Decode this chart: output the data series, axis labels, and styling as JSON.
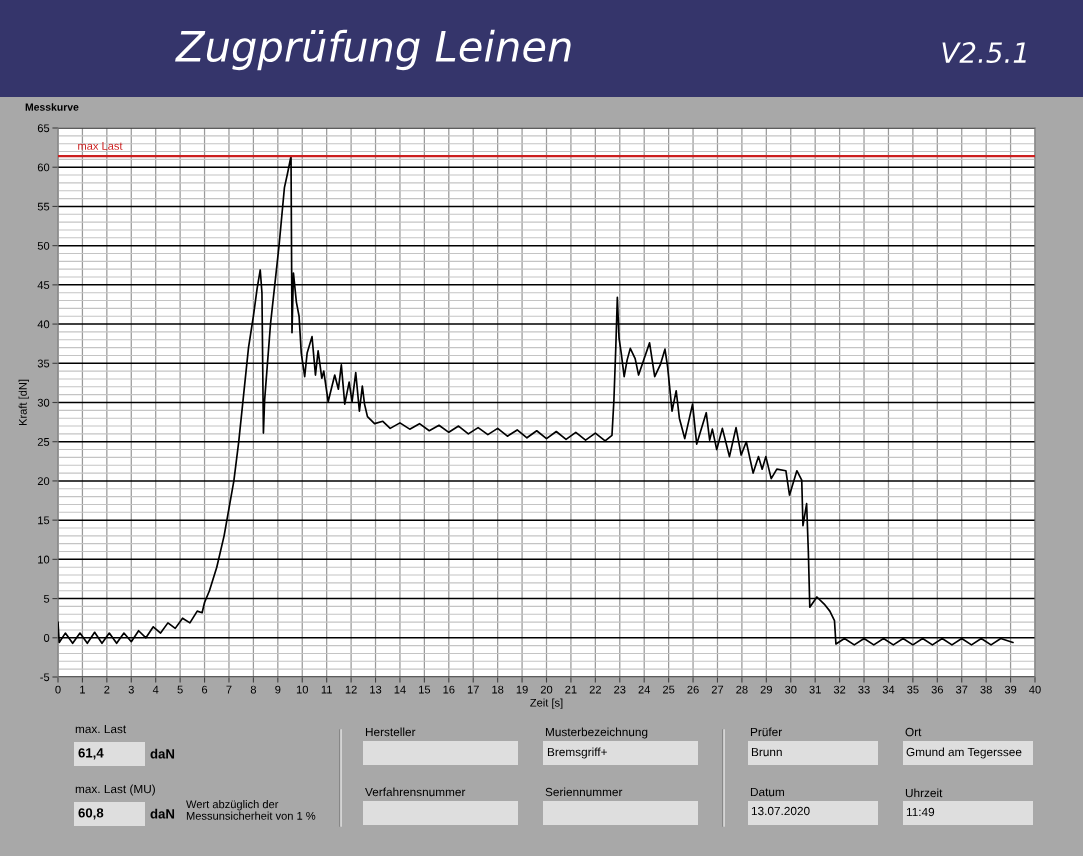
{
  "chart_data": {
    "type": "line",
    "title": "Zugprüfung Leinen",
    "xlabel": "Zeit [s]",
    "ylabel": "Kraft [dN]",
    "xlim": [
      0,
      40
    ],
    "ylim": [
      -5,
      65
    ],
    "xticks": [
      0,
      1,
      2,
      3,
      4,
      5,
      6,
      7,
      8,
      9,
      10,
      11,
      12,
      13,
      14,
      15,
      16,
      17,
      18,
      19,
      20,
      21,
      22,
      23,
      24,
      25,
      26,
      27,
      28,
      29,
      30,
      31,
      32,
      33,
      34,
      35,
      36,
      37,
      38,
      39,
      40
    ],
    "yticks": [
      -5,
      {
        "value": -4,
        "label": null
      },
      {
        "value": -3,
        "label": null
      },
      {
        "value": -2,
        "label": null
      },
      {
        "value": -1,
        "label": null
      },
      0,
      {
        "value": 1,
        "label": null
      },
      {
        "value": 2,
        "label": null
      },
      {
        "value": 3,
        "label": null
      },
      {
        "value": 4,
        "label": null
      },
      5,
      {
        "value": 6,
        "label": null
      },
      {
        "value": 7,
        "label": null
      },
      {
        "value": 8,
        "label": null
      },
      {
        "value": 9,
        "label": null
      },
      10,
      {
        "value": 11,
        "label": null
      },
      {
        "value": 12,
        "label": null
      },
      {
        "value": 13,
        "label": null
      },
      {
        "value": 14,
        "label": null
      },
      15,
      {
        "value": 16,
        "label": null
      },
      {
        "value": 17,
        "label": null
      },
      {
        "value": 18,
        "label": null
      },
      {
        "value": 19,
        "label": null
      },
      20,
      {
        "value": 21,
        "label": null
      },
      {
        "value": 22,
        "label": null
      },
      {
        "value": 23,
        "label": null
      },
      {
        "value": 24,
        "label": null
      },
      25,
      {
        "value": 26,
        "label": null
      },
      {
        "value": 27,
        "label": null
      },
      {
        "value": 28,
        "label": null
      },
      {
        "value": 29,
        "label": null
      },
      30,
      {
        "value": 31,
        "label": null
      },
      {
        "value": 32,
        "label": null
      },
      {
        "value": 33,
        "label": null
      },
      {
        "value": 34,
        "label": null
      },
      35,
      {
        "value": 36,
        "label": null
      },
      {
        "value": 37,
        "label": null
      },
      {
        "value": 38,
        "label": null
      },
      {
        "value": 39,
        "label": null
      },
      40,
      {
        "value": 41,
        "label": null
      },
      {
        "value": 42,
        "label": null
      },
      {
        "value": 43,
        "label": null
      },
      {
        "value": 44,
        "label": null
      },
      45,
      {
        "value": 46,
        "label": null
      },
      {
        "value": 47,
        "label": null
      },
      {
        "value": 48,
        "label": null
      },
      {
        "value": 49,
        "label": null
      },
      50,
      {
        "value": 51,
        "label": null
      },
      {
        "value": 52,
        "label": null
      },
      {
        "value": 53,
        "label": null
      },
      {
        "value": 54,
        "label": null
      },
      55,
      {
        "value": 56,
        "label": null
      },
      {
        "value": 57,
        "label": null
      },
      {
        "value": 58,
        "label": null
      },
      {
        "value": 59,
        "label": null
      },
      60,
      {
        "value": 61,
        "label": null
      },
      {
        "value": 62,
        "label": null
      },
      {
        "value": 63,
        "label": null
      },
      {
        "value": 64,
        "label": null
      },
      65
    ],
    "grid": true,
    "series": [
      {
        "color": "#000000",
        "x": [
          0,
          0.05,
          0.3,
          0.6,
          0.9,
          1.2,
          1.5,
          1.8,
          2.1,
          2.4,
          2.7,
          3.0,
          3.3,
          3.6,
          3.9,
          4.2,
          4.5,
          4.8,
          5.1,
          5.4,
          5.7,
          5.9,
          6.0,
          6.2,
          6.5,
          6.8,
          7.0,
          7.2,
          7.4,
          7.6,
          7.8,
          8.0,
          8.15,
          8.28,
          8.35,
          8.41,
          8.46,
          8.7,
          9.05,
          9.27,
          9.39,
          9.54,
          9.58,
          9.64,
          9.76,
          9.87,
          9.96,
          10.1,
          10.2,
          10.4,
          10.54,
          10.65,
          10.8,
          10.88,
          11.06,
          11.33,
          11.48,
          11.6,
          11.74,
          11.92,
          12.04,
          12.19,
          12.34,
          12.46,
          12.55,
          12.67,
          12.96,
          13.3,
          13.6,
          14.0,
          14.4,
          14.8,
          15.2,
          15.6,
          16.0,
          16.4,
          16.8,
          17.2,
          17.6,
          18.0,
          18.4,
          18.8,
          19.2,
          19.6,
          20.0,
          20.4,
          20.8,
          21.2,
          21.6,
          22.0,
          22.4,
          22.68,
          22.76,
          22.84,
          22.9,
          22.97,
          23.06,
          23.18,
          23.3,
          23.43,
          23.63,
          23.77,
          24.0,
          24.22,
          24.43,
          24.67,
          24.85,
          24.96,
          25.14,
          25.31,
          25.44,
          25.66,
          25.98,
          26.15,
          26.54,
          26.68,
          26.79,
          26.97,
          27.2,
          27.49,
          27.76,
          27.97,
          28.18,
          28.46,
          28.68,
          28.83,
          28.98,
          29.2,
          29.43,
          29.8,
          29.95,
          30.25,
          30.45,
          30.5,
          30.65,
          30.72,
          30.78,
          31.07,
          31.37,
          31.6,
          31.79,
          31.85,
          32.2,
          32.6,
          33.0,
          33.4,
          33.8,
          34.2,
          34.6,
          35.0,
          35.4,
          35.8,
          36.2,
          36.6,
          37.0,
          37.4,
          37.8,
          38.2,
          38.6,
          39.1
        ],
        "values": [
          2.0,
          -0.6,
          0.6,
          -0.7,
          0.6,
          -0.7,
          0.7,
          -0.7,
          0.6,
          -0.7,
          0.6,
          -0.5,
          0.9,
          0.0,
          1.4,
          0.6,
          1.9,
          1.2,
          2.5,
          1.9,
          3.4,
          3.2,
          4.5,
          6.0,
          9.0,
          13.0,
          16.5,
          20.0,
          25.0,
          31.0,
          37.0,
          41.0,
          44.5,
          46.9,
          44.0,
          26.1,
          30.3,
          40.0,
          50.0,
          57.4,
          59.1,
          61.4,
          38.9,
          46.5,
          42.8,
          41.0,
          36.3,
          33.3,
          36.3,
          38.4,
          33.5,
          36.6,
          33.1,
          34.0,
          30.1,
          33.5,
          31.7,
          34.8,
          29.8,
          32.6,
          30.1,
          33.8,
          28.9,
          32.1,
          29.8,
          28.2,
          27.3,
          27.6,
          26.7,
          27.4,
          26.6,
          27.3,
          26.4,
          27.1,
          26.2,
          27.0,
          26.0,
          26.8,
          25.9,
          26.7,
          25.7,
          26.5,
          25.5,
          26.4,
          25.4,
          26.3,
          25.3,
          26.2,
          25.2,
          26.1,
          25.1,
          25.8,
          30.3,
          37.3,
          43.4,
          38.2,
          36.3,
          33.3,
          35.4,
          36.9,
          35.6,
          33.5,
          35.6,
          37.6,
          33.3,
          34.9,
          36.8,
          34.5,
          28.9,
          31.5,
          28.0,
          25.4,
          29.8,
          24.7,
          28.7,
          25.2,
          26.6,
          24.0,
          26.7,
          23.1,
          26.8,
          23.3,
          25.0,
          21.0,
          23.1,
          21.5,
          23.1,
          20.3,
          21.5,
          21.3,
          18.2,
          21.3,
          20.1,
          14.3,
          17.1,
          11.0,
          3.9,
          5.2,
          4.3,
          3.4,
          2.2,
          -0.8,
          -0.1,
          -0.9,
          -0.1,
          -0.9,
          -0.1,
          -0.9,
          -0.1,
          -0.9,
          -0.1,
          -0.9,
          -0.1,
          -0.9,
          -0.1,
          -0.9,
          -0.1,
          -0.9,
          -0.1,
          -0.6
        ]
      }
    ],
    "ref_lines": [
      {
        "axis": "y",
        "value": 61.4,
        "label": "max Last",
        "color": "#cc1f1f"
      }
    ],
    "annotations": [
      "Messkurve",
      "V2.5.1",
      "max. Last",
      "61,4",
      "daN",
      "max. Last (MU)",
      "60,8",
      "daN",
      "Wert abzüglich der\nMessunsicherheit von 1 %",
      "Hersteller",
      "Musterbezeichnung",
      "Bremsgriff+",
      "Verfahrensnummer",
      "Seriennummer",
      "Prüfer",
      "Brunn",
      "Datum",
      "13.07.2020",
      "Ort",
      "Gmund am Tegerssee",
      "Uhrzeit",
      "11:49"
    ]
  }
}
